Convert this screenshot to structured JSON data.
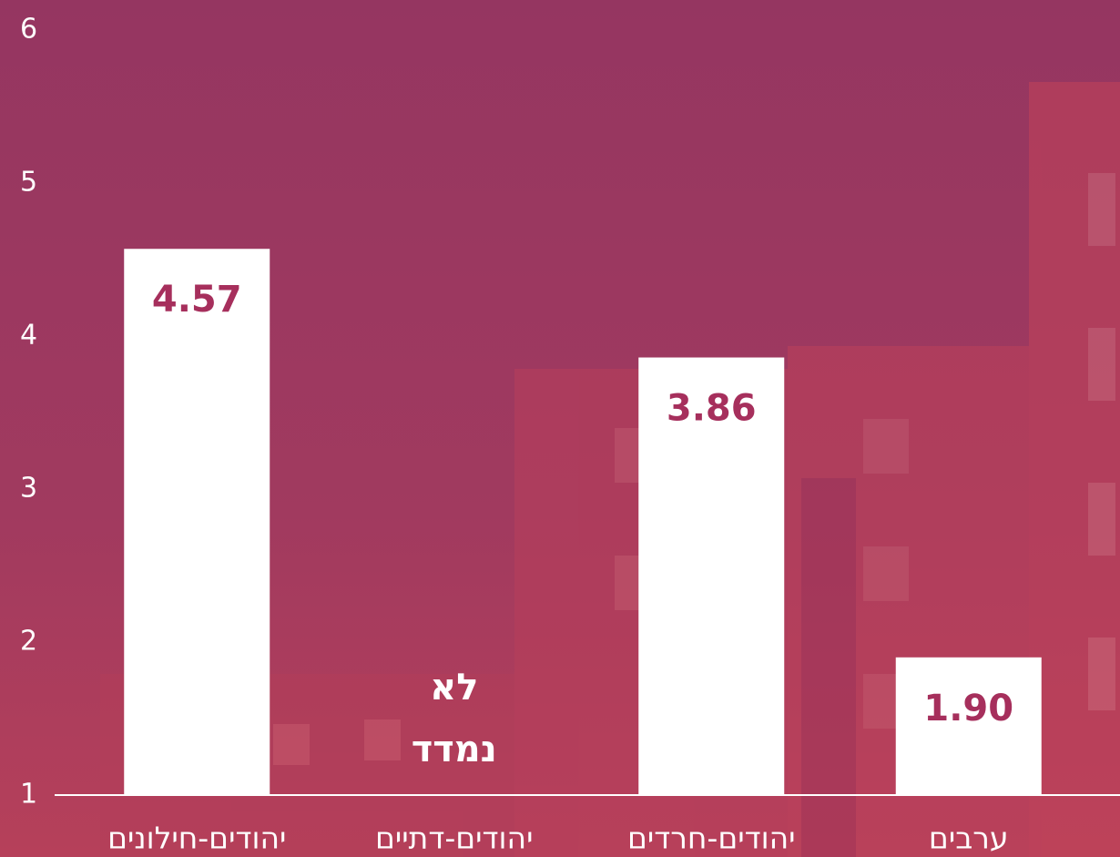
{
  "chart_data": {
    "type": "bar",
    "categories": [
      "יהודים-חילונים",
      "יהודים-דתיים",
      "יהודים-חרדים",
      "ערבים"
    ],
    "values": [
      4.57,
      null,
      3.86,
      1.9
    ],
    "value_labels": [
      "4.57",
      null,
      "3.86",
      "1.90"
    ],
    "missing_label": "לא נמדד",
    "color": "#ffffff",
    "label_color": "#a62f5c",
    "ylim": [
      1,
      6
    ],
    "yticks": [
      1,
      2,
      3,
      4,
      5,
      6
    ]
  }
}
